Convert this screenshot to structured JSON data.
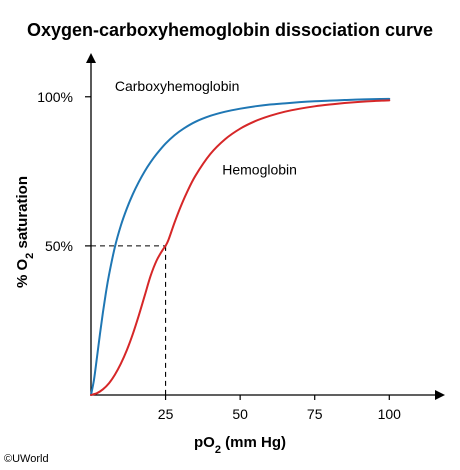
{
  "chart_data": {
    "type": "line",
    "title": "Oxygen-carboxyhemoglobin dissociation curve",
    "xlabel": {
      "base": "pO",
      "sub": "2",
      "tail": " (mm Hg)"
    },
    "ylabel": {
      "base": "% O",
      "sub": "2",
      "tail": " saturation"
    },
    "xlim": [
      0,
      117
    ],
    "ylim": [
      0,
      113
    ],
    "x_ticks": [
      {
        "value": 25,
        "label": "25"
      },
      {
        "value": 50,
        "label": "50"
      },
      {
        "value": 75,
        "label": "75"
      },
      {
        "value": 100,
        "label": "100"
      }
    ],
    "y_ticks": [
      {
        "value": 50,
        "label": "50%"
      },
      {
        "value": 100,
        "label": "100%"
      }
    ],
    "grid": false,
    "legend": "none",
    "reference_point": {
      "x": 25,
      "y": 50,
      "style": "dashed"
    },
    "series": [
      {
        "name": "Carboxyhemoglobin",
        "label_anchor": {
          "x": 8,
          "y": 102
        },
        "color": "#1f77b4",
        "x": [
          0,
          1,
          2,
          3,
          4,
          5,
          6,
          8,
          10,
          12,
          14,
          16,
          18,
          20,
          22,
          25,
          28,
          31,
          35,
          40,
          45,
          50,
          55,
          60,
          65,
          70,
          75,
          80,
          85,
          90,
          95,
          100
        ],
        "y": [
          0,
          5.1,
          12.6,
          20.4,
          27.7,
          34.3,
          40.1,
          49.6,
          56.8,
          62.5,
          67.3,
          71.4,
          75.0,
          78.1,
          80.8,
          84.3,
          87.1,
          89.3,
          91.6,
          93.6,
          95.0,
          96.0,
          96.8,
          97.4,
          97.8,
          98.2,
          98.5,
          98.7,
          98.9,
          99.1,
          99.2,
          99.3
        ]
      },
      {
        "name": "Hemoglobin",
        "label_anchor": {
          "x": 44,
          "y": 74
        },
        "color": "#d62728",
        "x": [
          0,
          2,
          4,
          6,
          8,
          10,
          12,
          14,
          16,
          18,
          20,
          22,
          24,
          25,
          26,
          28,
          30,
          32,
          35,
          40,
          45,
          50,
          55,
          60,
          65,
          70,
          75,
          80,
          85,
          90,
          95,
          100
        ],
        "y": [
          0,
          0.6,
          1.9,
          3.9,
          6.8,
          10.5,
          15.0,
          20.4,
          26.6,
          33.3,
          40.0,
          45.1,
          48.6,
          50.0,
          52.1,
          57.8,
          63.0,
          67.6,
          73.5,
          80.8,
          85.8,
          89.3,
          91.8,
          93.6,
          95.0,
          96.0,
          96.8,
          97.4,
          97.9,
          98.3,
          98.6,
          98.8
        ]
      }
    ]
  },
  "credit": "©UWorld"
}
